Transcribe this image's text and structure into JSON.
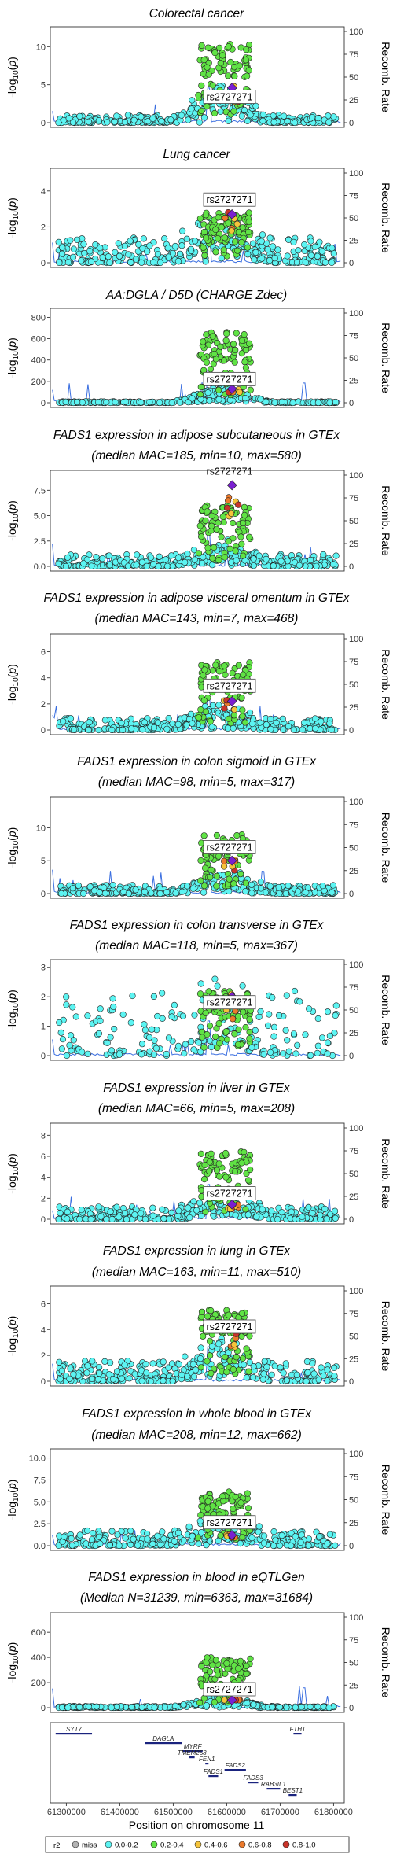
{
  "chart_data": {
    "type": "scatter",
    "x_axis": {
      "label": "Position on chromosome 11",
      "range": [
        61270000,
        61820000
      ],
      "ticks": [
        61300000,
        61400000,
        61500000,
        61600000,
        61700000,
        61800000
      ],
      "tick_labels": [
        "61300000",
        "61400000",
        "61500000",
        "61600000",
        "61700000",
        "61800000"
      ]
    },
    "lead_snp": {
      "label": "rs2727271",
      "position": 61610000
    },
    "right_axis": {
      "label": "Recomb. Rate",
      "ticks": [
        "0",
        "25",
        "50",
        "75",
        "100"
      ]
    },
    "left_axis_label": "-log10(p)",
    "panels": [
      {
        "title": [
          "Colorectal cancer"
        ],
        "ymax": 12,
        "yticks": [
          0,
          5,
          10
        ],
        "ytick_labels": [
          "0",
          "5",
          "10"
        ],
        "peak": 10.5,
        "lead": 4.6,
        "noise": 1.0,
        "hump": 0.5,
        "snp_label_frac": 0.28,
        "sparse": false,
        "snp_label": "rs2727271"
      },
      {
        "title": [
          "Lung cancer"
        ],
        "ymax": 5,
        "yticks": [
          0,
          2,
          4
        ],
        "ytick_labels": [
          "0",
          "2",
          "4"
        ],
        "peak": 2.8,
        "lead": 2.7,
        "noise": 1.4,
        "hump": 0.8,
        "snp_label_frac": 0.7,
        "sparse": false,
        "snp_label": "rs2727271"
      },
      {
        "title": [
          "AA:DGLA / D5D (CHARGE Zdec)"
        ],
        "ymax": 840,
        "yticks": [
          0,
          200,
          400,
          600,
          800
        ],
        "ytick_labels": [
          "0",
          "200",
          "400",
          "600",
          "800"
        ],
        "peak": 660,
        "lead": 130,
        "noise": 12,
        "hump": 0.25,
        "snp_label_frac": 0.26,
        "sparse": false,
        "snp_label": "rs2727271"
      },
      {
        "title": [
          "FADS1 expression in adipose subcutaneous in GTEx",
          "(median MAC=185, min=10, max=580)"
        ],
        "ymax": 9,
        "yticks": [
          0,
          2.5,
          5,
          7.5
        ],
        "ytick_labels": [
          "0.0",
          "2.5",
          "5.0",
          "7.5"
        ],
        "peak": 6.0,
        "lead": 8.0,
        "noise": 1.2,
        "hump": 0.3,
        "snp_label_frac": 1.04,
        "sparse": false,
        "snp_label": "rs2727271"
      },
      {
        "title": [
          "FADS1 expression in adipose visceral omentum in GTEx",
          "(median MAC=143, min=7, max=468)"
        ],
        "ymax": 7,
        "yticks": [
          0,
          2,
          4,
          6
        ],
        "ytick_labels": [
          "0",
          "2",
          "4",
          "6"
        ],
        "peak": 5.2,
        "lead": 2.2,
        "noise": 0.9,
        "hump": 0.3,
        "snp_label_frac": 0.48,
        "sparse": false,
        "snp_label": "rs2727271"
      },
      {
        "title": [
          "FADS1 expression in colon sigmoid in GTEx",
          "(median MAC=98, min=5, max=317)"
        ],
        "ymax": 14,
        "yticks": [
          0,
          5,
          10
        ],
        "ytick_labels": [
          "0",
          "5",
          "10"
        ],
        "peak": 9.0,
        "lead": 5.0,
        "noise": 1.3,
        "hump": 0.4,
        "snp_label_frac": 0.5,
        "sparse": false,
        "snp_label": "rs2727271"
      },
      {
        "title": [
          "FADS1 expression in colon transverse in GTEx",
          "(median MAC=118, min=5, max=367)"
        ],
        "ymax": 3.1,
        "yticks": [
          0,
          1,
          2,
          3
        ],
        "ytick_labels": [
          "0",
          "1",
          "2",
          "3"
        ],
        "peak": 2.2,
        "lead": 2.0,
        "noise": 2.2,
        "hump": 0.4,
        "snp_label_frac": 0.58,
        "sparse": true,
        "snp_label": "rs2727271"
      },
      {
        "title": [
          "FADS1 expression in liver in GTEx",
          "(median MAC=66, min=5, max=208)"
        ],
        "ymax": 8.7,
        "yticks": [
          0,
          2,
          4,
          6,
          8
        ],
        "ytick_labels": [
          "0",
          "2",
          "4",
          "6",
          "8"
        ],
        "peak": 6.5,
        "lead": 1.4,
        "noise": 1.2,
        "hump": 0.3,
        "snp_label_frac": 0.28,
        "sparse": false,
        "snp_label": "rs2727271"
      },
      {
        "title": [
          "FADS1 expression in lung in GTEx",
          "(median MAC=163, min=11, max=510)"
        ],
        "ymax": 7,
        "yticks": [
          0,
          2,
          4,
          6
        ],
        "ytick_labels": [
          "0",
          "2",
          "4",
          "6"
        ],
        "peak": 5.5,
        "lead": 4.1,
        "noise": 1.6,
        "hump": 0.5,
        "snp_label_frac": 0.6,
        "sparse": false,
        "snp_label": "rs2727271"
      },
      {
        "title": [
          "FADS1 expression in whole blood in GTEx",
          "(median MAC=208, min=12, max=662)"
        ],
        "ymax": 10.5,
        "yticks": [
          0,
          2.5,
          5,
          7.5,
          10
        ],
        "ytick_labels": [
          "0.0",
          "2.5",
          "5.0",
          "7.5",
          "10.0"
        ],
        "peak": 6.2,
        "lead": 1.2,
        "noise": 1.8,
        "hump": 0.45,
        "snp_label_frac": 0.25,
        "sparse": false,
        "snp_label": "rs2727271"
      },
      {
        "title": [
          "FADS1 expression in blood in eQTLGen",
          "(Median N=31239, min=6363, max=31684)"
        ],
        "ymax": 720,
        "yticks": [
          0,
          200,
          400,
          600
        ],
        "ytick_labels": [
          "0",
          "200",
          "400",
          "600"
        ],
        "peak": 400,
        "lead": 60,
        "noise": 12,
        "hump": 0.25,
        "snp_label_frac": 0.2,
        "sparse": false,
        "snp_label": "rs2727271"
      }
    ],
    "genes": [
      {
        "name": "SYT7",
        "start": 61280000,
        "end": 61348000,
        "row": 0
      },
      {
        "name": "FTH1",
        "start": 61725000,
        "end": 61740000,
        "row": 0
      },
      {
        "name": "DAGLA",
        "start": 61447000,
        "end": 61516000,
        "row": 1
      },
      {
        "name": "MYRF",
        "start": 61518000,
        "end": 61555000,
        "row": 2
      },
      {
        "name": "TMEM258",
        "start": 61530000,
        "end": 61540000,
        "row": 3
      },
      {
        "name": "FEN1",
        "start": 61560000,
        "end": 61566000,
        "row": 4
      },
      {
        "name": "FADS2",
        "start": 61596000,
        "end": 61636000,
        "row": 5
      },
      {
        "name": "FADS1",
        "start": 61566000,
        "end": 61584000,
        "row": 6
      },
      {
        "name": "FADS3",
        "start": 61640000,
        "end": 61659000,
        "row": 7
      },
      {
        "name": "RAB3IL1",
        "start": 61675000,
        "end": 61700000,
        "row": 8
      },
      {
        "name": "BEST1",
        "start": 61716000,
        "end": 61731000,
        "row": 9
      }
    ],
    "legend": {
      "title": "r2",
      "entries": [
        {
          "label": "miss",
          "color": "#b3b3b3"
        },
        {
          "label": "0.0-0.2",
          "color": "#5cf4f2"
        },
        {
          "label": "0.2-0.4",
          "color": "#60e345"
        },
        {
          "label": "0.4-0.6",
          "color": "#f5c43a"
        },
        {
          "label": "0.6-0.8",
          "color": "#eb7a2c"
        },
        {
          "label": "0.8-1.0",
          "color": "#c9342a"
        }
      ],
      "lead_color": "#7a1fd1"
    }
  }
}
